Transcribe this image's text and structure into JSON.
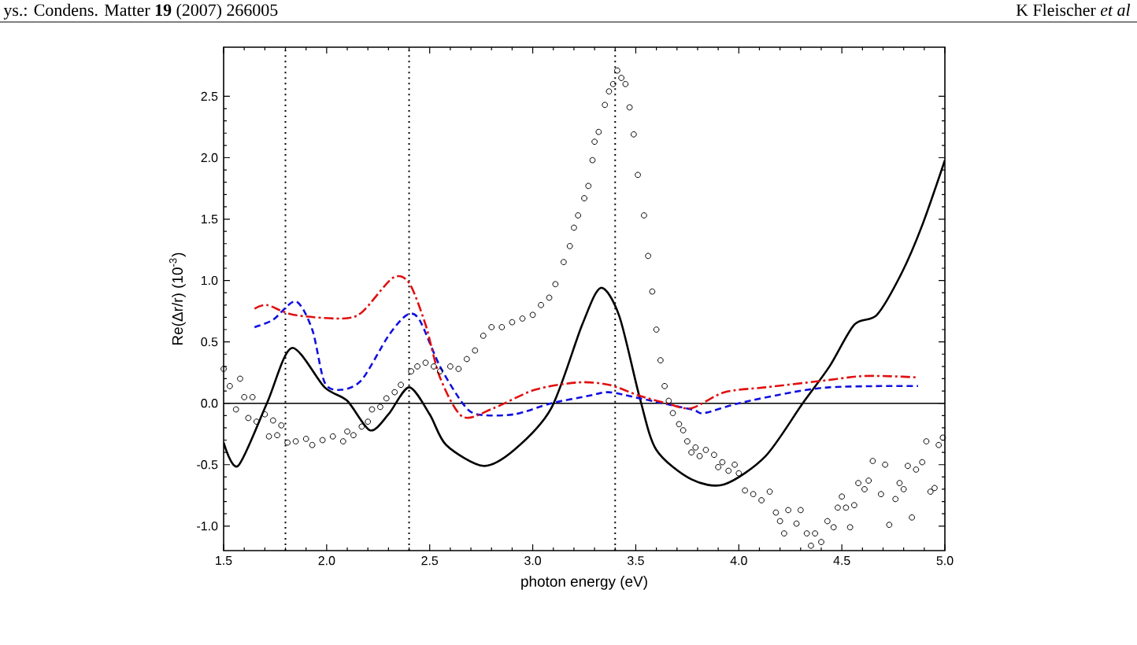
{
  "chart_data": {
    "type": "line",
    "xlabel": "photon energy (eV)",
    "ylabel": "Re(Δr/r) (10$^{-3}$)",
    "annotations": [
      "ys.: Condens. Matter **19** (2007) 266005",
      "K Fleischer *et al*"
    ],
    "xlim": [
      1.5,
      5.0
    ],
    "ylim": [
      -1.2,
      2.9
    ],
    "xticks": [
      1.5,
      {
        "value": 2,
        "label": "2.0"
      },
      2.5,
      {
        "value": 3,
        "label": "3.0"
      },
      3.5,
      {
        "value": 4,
        "label": "4.0"
      },
      4.5,
      {
        "value": 5,
        "label": "5.0"
      }
    ],
    "yticks": [
      {
        "value": -1,
        "label": "-1.0"
      },
      -0.5,
      {
        "value": 0,
        "label": "0.0"
      },
      0.5,
      {
        "value": 1,
        "label": "1.0"
      },
      1.5,
      {
        "value": 2,
        "label": "2.0"
      },
      2.5
    ],
    "grid": false,
    "ref_lines": [
      {
        "axis": "x",
        "value": 1.8,
        "color": "#000000",
        "line_style": "dotted"
      },
      {
        "axis": "x",
        "value": 2.4,
        "color": "#000000",
        "line_style": "dotted"
      },
      {
        "axis": "x",
        "value": 3.4,
        "color": "#000000",
        "line_style": "dotted"
      },
      {
        "axis": "y",
        "value": 0,
        "color": "#000000",
        "line_style": "solid"
      }
    ],
    "series": [
      {
        "type": "scatter",
        "marker": "circle",
        "color": "#000000",
        "x": [
          1.5,
          1.53,
          1.58,
          1.56,
          1.6,
          1.64,
          1.62,
          1.66,
          1.7,
          1.72,
          1.74,
          1.76,
          1.78,
          1.81,
          1.85,
          1.9,
          1.93,
          1.98,
          2.03,
          2.08,
          2.1,
          2.13,
          2.17,
          2.2,
          2.22,
          2.26,
          2.29,
          2.33,
          2.36,
          2.41,
          2.44,
          2.48,
          2.52,
          2.55,
          2.6,
          2.64,
          2.68,
          2.72,
          2.76,
          2.8,
          2.85,
          2.9,
          2.95,
          3.0,
          3.04,
          3.08,
          3.11,
          3.15,
          3.18,
          3.2,
          3.22,
          3.25,
          3.27,
          3.29,
          3.3,
          3.32,
          3.35,
          3.37,
          3.39,
          3.41,
          3.43,
          3.45,
          3.47,
          3.49,
          3.51,
          3.54,
          3.56,
          3.58,
          3.6,
          3.62,
          3.64,
          3.66,
          3.68,
          3.71,
          3.73,
          3.75,
          3.77,
          3.79,
          3.81,
          3.84,
          3.88,
          3.9,
          3.92,
          3.95,
          3.98,
          4.0,
          4.03,
          4.07,
          4.11,
          4.15,
          4.18,
          4.2,
          4.22,
          4.24,
          4.28,
          4.3,
          4.33,
          4.35,
          4.37,
          4.4,
          4.43,
          4.46,
          4.48,
          4.5,
          4.52,
          4.54,
          4.56,
          4.58,
          4.61,
          4.63,
          4.65,
          4.69,
          4.71,
          4.73,
          4.76,
          4.78,
          4.8,
          4.82,
          4.84,
          4.86,
          4.89,
          4.91,
          4.93,
          4.95,
          4.97,
          4.99
        ],
        "values": [
          0.28,
          0.14,
          0.2,
          -0.05,
          0.05,
          0.05,
          -0.12,
          -0.15,
          -0.09,
          -0.27,
          -0.14,
          -0.26,
          -0.18,
          -0.32,
          -0.31,
          -0.29,
          -0.34,
          -0.3,
          -0.27,
          -0.31,
          -0.23,
          -0.26,
          -0.19,
          -0.15,
          -0.05,
          -0.03,
          0.04,
          0.09,
          0.15,
          0.26,
          0.3,
          0.33,
          0.3,
          0.26,
          0.3,
          0.28,
          0.36,
          0.43,
          0.55,
          0.62,
          0.62,
          0.66,
          0.69,
          0.72,
          0.8,
          0.86,
          0.97,
          1.15,
          1.28,
          1.43,
          1.53,
          1.67,
          1.77,
          1.98,
          2.13,
          2.21,
          2.43,
          2.54,
          2.6,
          2.71,
          2.65,
          2.6,
          2.41,
          2.19,
          1.86,
          1.53,
          1.2,
          0.91,
          0.6,
          0.35,
          0.14,
          0.02,
          -0.08,
          -0.17,
          -0.22,
          -0.31,
          -0.4,
          -0.36,
          -0.43,
          -0.38,
          -0.42,
          -0.52,
          -0.48,
          -0.55,
          -0.5,
          -0.57,
          -0.71,
          -0.74,
          -0.79,
          -0.72,
          -0.89,
          -0.96,
          -1.06,
          -0.87,
          -0.98,
          -0.87,
          -1.06,
          -1.16,
          -1.06,
          -1.13,
          -0.96,
          -1.01,
          -0.85,
          -0.76,
          -0.85,
          -1.01,
          -0.83,
          -0.65,
          -0.7,
          -0.63,
          -0.47,
          -0.74,
          -0.5,
          -0.99,
          -0.78,
          -0.65,
          -0.7,
          -0.51,
          -0.93,
          -0.54,
          -0.48,
          -0.31,
          -0.72,
          -0.69,
          -0.34,
          -0.28
        ]
      },
      {
        "line_style": "solid",
        "color": "#000000",
        "x": [
          1.5,
          1.57,
          1.71,
          1.83,
          1.99,
          2.1,
          2.21,
          2.3,
          2.4,
          2.5,
          2.58,
          2.76,
          2.91,
          3.09,
          3.24,
          3.33,
          3.42,
          3.52,
          3.6,
          3.77,
          3.93,
          4.13,
          4.31,
          4.44,
          4.56,
          4.67,
          4.79,
          4.89,
          5.0
        ],
        "values": [
          -0.32,
          -0.51,
          0,
          0.45,
          0.13,
          0.02,
          -0.22,
          -0.09,
          0.13,
          -0.09,
          -0.34,
          -0.51,
          -0.38,
          -0.04,
          0.64,
          0.94,
          0.71,
          0.04,
          -0.38,
          -0.62,
          -0.66,
          -0.43,
          0,
          0.3,
          0.64,
          0.72,
          1.06,
          1.45,
          1.98
        ]
      },
      {
        "line_style": "dashed",
        "color": "#1010e0",
        "x": [
          1.65,
          1.74,
          1.85,
          1.93,
          1.99,
          2.07,
          2.17,
          2.3,
          2.39,
          2.45,
          2.55,
          2.66,
          2.73,
          2.91,
          3.09,
          3.27,
          3.37,
          3.52,
          3.77,
          3.83,
          4.0,
          4.26,
          4.44,
          4.69,
          4.87
        ],
        "values": [
          0.62,
          0.68,
          0.83,
          0.6,
          0.17,
          0.11,
          0.19,
          0.55,
          0.72,
          0.68,
          0.3,
          0,
          -0.09,
          -0.09,
          0,
          0.06,
          0.09,
          0.04,
          -0.05,
          -0.08,
          0,
          0.09,
          0.13,
          0.14,
          0.14
        ]
      },
      {
        "line_style": "dashdot",
        "color": "#e01010",
        "x": [
          1.65,
          1.71,
          1.84,
          2.07,
          2.17,
          2.32,
          2.4,
          2.48,
          2.55,
          2.66,
          2.81,
          3.01,
          3.22,
          3.37,
          3.52,
          3.65,
          3.77,
          3.93,
          4.13,
          4.39,
          4.59,
          4.74,
          4.87
        ],
        "values": [
          0.77,
          0.8,
          0.72,
          0.69,
          0.74,
          1.02,
          0.98,
          0.64,
          0.21,
          -0.11,
          -0.04,
          0.11,
          0.17,
          0.15,
          0.06,
          0,
          -0.04,
          0.09,
          0.13,
          0.18,
          0.22,
          0.22,
          0.21
        ]
      }
    ]
  }
}
